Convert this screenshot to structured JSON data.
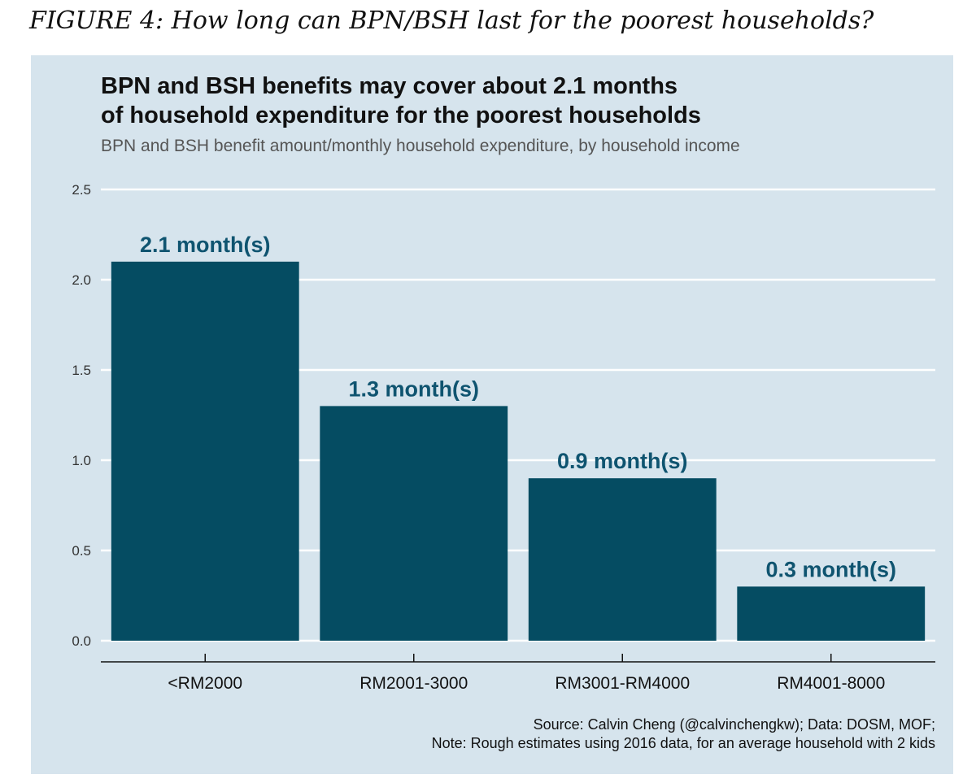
{
  "figure_caption": "FIGURE 4: How long can BPN/BSH last for the poorest households?",
  "chart_data": {
    "type": "bar",
    "title_line1": "BPN and BSH benefits may cover about 2.1 months",
    "title_line2": "of household expenditure for the poorest households",
    "subtitle": "BPN and BSH benefit amount/monthly household expenditure, by household income",
    "categories": [
      "<RM2000",
      "RM2001-3000",
      "RM3001-RM4000",
      "RM4001-8000"
    ],
    "values": [
      2.1,
      1.3,
      0.9,
      0.3
    ],
    "data_labels": [
      "2.1 month(s)",
      "1.3 month(s)",
      "0.9 month(s)",
      "0.3 month(s)"
    ],
    "ylim": [
      0,
      2.5
    ],
    "yticks": [
      0.0,
      0.5,
      1.0,
      1.5,
      2.0,
      2.5
    ],
    "ytick_labels": [
      "0.0",
      "0.5",
      "1.0",
      "1.5",
      "2.0",
      "2.5"
    ],
    "grid": true,
    "xlabel": "",
    "ylabel": "",
    "bar_color": "#054c62",
    "label_color": "#0f5470",
    "background_color": "#d6e4ed"
  },
  "source_line1": "Source: Calvin Cheng (@calvinchengkw); Data: DOSM, MOF;",
  "source_line2": "Note: Rough estimates using 2016 data, for an average household with 2 kids"
}
